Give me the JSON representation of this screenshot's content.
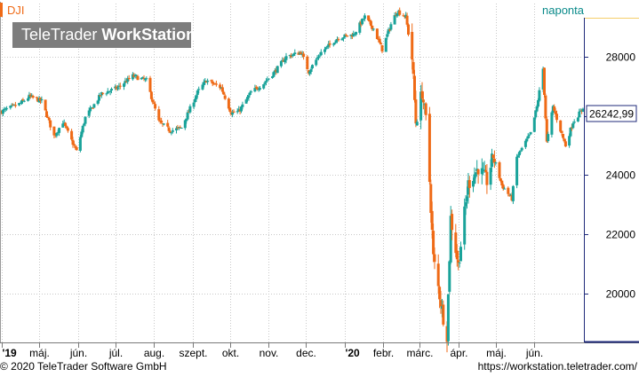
{
  "header": {
    "symbol": "DJI",
    "period": "naponta"
  },
  "logo": {
    "brand_light": "TeleTrader",
    "brand_bold": "WorkStation"
  },
  "footer": {
    "copyright": "© 2020 TeleTrader Software GmbH",
    "url": "https://workstation.teletrader.com/"
  },
  "colors": {
    "up": "#1aa39a",
    "down": "#ef6a16",
    "symbol_text": "#ef6a16",
    "period_text": "#0a8a8a",
    "price_box_border": "#1f2a7a"
  },
  "chart_data": {
    "type": "candlestick",
    "ylim": [
      18400,
      29800
    ],
    "y_ticks": [
      {
        "value": 20000,
        "label": "20000"
      },
      {
        "value": 22000,
        "label": "22000"
      },
      {
        "value": 24000,
        "label": "24000"
      },
      {
        "value": 26000,
        "label": "26000"
      },
      {
        "value": 28000,
        "label": "28000"
      }
    ],
    "x_range": [
      "2019-04-01",
      "2020-07-10"
    ],
    "x_ticks": [
      {
        "date": "2019-04-01",
        "label": "'19"
      },
      {
        "date": "2019-05-01",
        "label": "máj."
      },
      {
        "date": "2019-06-01",
        "label": "jún."
      },
      {
        "date": "2019-07-01",
        "label": "júl."
      },
      {
        "date": "2019-08-01",
        "label": "aug."
      },
      {
        "date": "2019-09-01",
        "label": "szept."
      },
      {
        "date": "2019-10-01",
        "label": "okt."
      },
      {
        "date": "2019-11-01",
        "label": "nov."
      },
      {
        "date": "2019-12-01",
        "label": "dec."
      },
      {
        "date": "2020-01-01",
        "label": "'20"
      },
      {
        "date": "2020-02-01",
        "label": "febr."
      },
      {
        "date": "2020-03-01",
        "label": "márc."
      },
      {
        "date": "2020-04-01",
        "label": "ápr."
      },
      {
        "date": "2020-05-01",
        "label": "máj."
      },
      {
        "date": "2020-06-01",
        "label": "jún."
      }
    ],
    "last_value": 26242.99,
    "last_value_label": "26242,99",
    "close_path": [
      [
        "2019-04-01",
        26150
      ],
      [
        "2019-04-15",
        26400
      ],
      [
        "2019-04-23",
        26650
      ],
      [
        "2019-05-03",
        26500
      ],
      [
        "2019-05-13",
        25320
      ],
      [
        "2019-05-20",
        25800
      ],
      [
        "2019-05-31",
        24800
      ],
      [
        "2019-06-07",
        25950
      ],
      [
        "2019-06-20",
        26750
      ],
      [
        "2019-07-03",
        26950
      ],
      [
        "2019-07-15",
        27350
      ],
      [
        "2019-07-26",
        27200
      ],
      [
        "2019-08-05",
        25800
      ],
      [
        "2019-08-14",
        25500
      ],
      [
        "2019-08-23",
        25600
      ],
      [
        "2019-09-05",
        26800
      ],
      [
        "2019-09-12",
        27200
      ],
      [
        "2019-09-24",
        26950
      ],
      [
        "2019-10-02",
        26100
      ],
      [
        "2019-10-08",
        26150
      ],
      [
        "2019-10-18",
        26800
      ],
      [
        "2019-10-28",
        27100
      ],
      [
        "2019-11-06",
        27500
      ],
      [
        "2019-11-15",
        28000
      ],
      [
        "2019-11-27",
        28150
      ],
      [
        "2019-12-03",
        27500
      ],
      [
        "2019-12-13",
        28150
      ],
      [
        "2019-12-27",
        28650
      ],
      [
        "2020-01-08",
        28750
      ],
      [
        "2020-01-17",
        29350
      ],
      [
        "2020-01-24",
        28950
      ],
      [
        "2020-01-31",
        28250
      ],
      [
        "2020-02-07",
        29100
      ],
      [
        "2020-02-12",
        29550
      ],
      [
        "2020-02-19",
        29350
      ],
      [
        "2020-02-24",
        27950
      ],
      [
        "2020-02-27",
        25800
      ],
      [
        "2020-03-03",
        26800
      ],
      [
        "2020-03-06",
        25850
      ],
      [
        "2020-03-09",
        23800
      ],
      [
        "2020-03-12",
        21200
      ],
      [
        "2020-03-16",
        20200
      ],
      [
        "2020-03-20",
        19200
      ],
      [
        "2020-03-23",
        18600
      ],
      [
        "2020-03-26",
        22550
      ],
      [
        "2020-04-01",
        20950
      ],
      [
        "2020-04-06",
        22700
      ],
      [
        "2020-04-09",
        23700
      ],
      [
        "2020-04-17",
        24250
      ],
      [
        "2020-04-24",
        23800
      ],
      [
        "2020-04-29",
        24650
      ],
      [
        "2020-05-06",
        23650
      ],
      [
        "2020-05-14",
        23200
      ],
      [
        "2020-05-18",
        24600
      ],
      [
        "2020-05-29",
        25400
      ],
      [
        "2020-06-03",
        26300
      ],
      [
        "2020-06-08",
        27600
      ],
      [
        "2020-06-11",
        25100
      ],
      [
        "2020-06-16",
        26300
      ],
      [
        "2020-06-26",
        25000
      ],
      [
        "2020-07-02",
        25800
      ],
      [
        "2020-07-10",
        26242.99
      ]
    ]
  }
}
